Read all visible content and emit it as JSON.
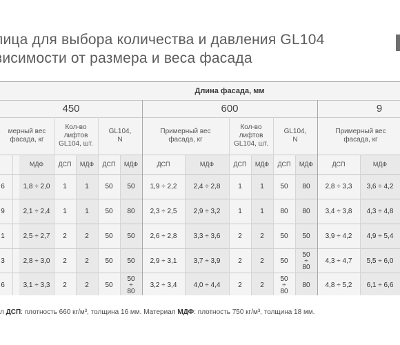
{
  "title": {
    "line1": "лица для выбора количества и давления GL104",
    "line2": "висимости от размера и веса фасада"
  },
  "table": {
    "caption": "Длина фасада, мм",
    "lengths": [
      "450",
      "600",
      "9"
    ],
    "col_headers": {
      "weight": "мерный вес фасада, кг",
      "weight_full": "Примерный вес фасада, кг",
      "lifts": "Кол-во лифтов GL104, шт.",
      "force": "GL104, N"
    },
    "sub": {
      "dsp": "ДСП",
      "mdf": "МДФ"
    },
    "rows": [
      {
        "w_dsp": "6",
        "w_mdf": "1,8 ÷ 2,0",
        "l_dsp": "1",
        "l_mdf": "1",
        "n_dsp": "50",
        "n_mdf": "50",
        "w2_dsp": "1,9 ÷ 2,2",
        "w2_mdf": "2,4 ÷ 2,8",
        "l2_dsp": "1",
        "l2_mdf": "1",
        "n2_dsp": "50",
        "n2_mdf": "80",
        "w3_dsp": "2,8 ÷ 3,3",
        "w3_mdf": "3,6 ÷ 4,2"
      },
      {
        "w_dsp": "9",
        "w_mdf": "2,1 ÷ 2,4",
        "l_dsp": "1",
        "l_mdf": "1",
        "n_dsp": "50",
        "n_mdf": "80",
        "w2_dsp": "2,3 ÷ 2,5",
        "w2_mdf": "2,9 ÷ 3,2",
        "l2_dsp": "1",
        "l2_mdf": "1",
        "n2_dsp": "80",
        "n2_mdf": "80",
        "w3_dsp": "3,4 ÷ 3,8",
        "w3_mdf": "4,3 ÷ 4,8"
      },
      {
        "w_dsp": "1",
        "w_mdf": "2,5 ÷ 2,7",
        "l_dsp": "2",
        "l_mdf": "2",
        "n_dsp": "50",
        "n_mdf": "50",
        "w2_dsp": "2,6 ÷ 2,8",
        "w2_mdf": "3,3 ÷ 3,6",
        "l2_dsp": "2",
        "l2_mdf": "2",
        "n2_dsp": "50",
        "n2_mdf": "50",
        "w3_dsp": "3,9 ÷ 4,2",
        "w3_mdf": "4,9 ÷ 5,4"
      },
      {
        "w_dsp": "3",
        "w_mdf": "2,8 ÷ 3,0",
        "l_dsp": "2",
        "l_mdf": "2",
        "n_dsp": "50",
        "n_mdf": "50",
        "w2_dsp": "2,9 ÷ 3,1",
        "w2_mdf": "3,7 ÷ 3,9",
        "l2_dsp": "2",
        "l2_mdf": "2",
        "n2_dsp": "50",
        "n2_mdf_top": "50",
        "n2_mdf_mid": "÷",
        "n2_mdf_bot": "80",
        "w3_dsp": "4,3 ÷ 4,7",
        "w3_mdf": "5,5 ÷ 6,0"
      },
      {
        "w_dsp": "6",
        "w_mdf": "3,1 ÷ 3,3",
        "l_dsp": "2",
        "l_mdf": "2",
        "n_dsp": "50",
        "n_mdf_top": "50",
        "n_mdf_mid": "÷",
        "n_mdf_bot": "80",
        "w2_dsp": "3,2 ÷ 3,4",
        "w2_mdf": "4,0 ÷ 4,4",
        "l2_dsp": "2",
        "l2_mdf": "2",
        "n2_dsp_top": "50",
        "n2_dsp_mid": "÷",
        "n2_dsp_bot": "80",
        "n2_mdf": "80",
        "w3_dsp": "4,8 ÷ 5,2",
        "w3_mdf": "6,1 ÷ 6,6"
      }
    ]
  },
  "footnote": {
    "p1": "л ",
    "dsp": "ДСП",
    "p2": ": плотность 660 кг/м³, толщина 16 мм. Материал ",
    "mdf": "МДФ",
    "p3": ": плотность 750 кг/м³, толщина 18 мм."
  }
}
